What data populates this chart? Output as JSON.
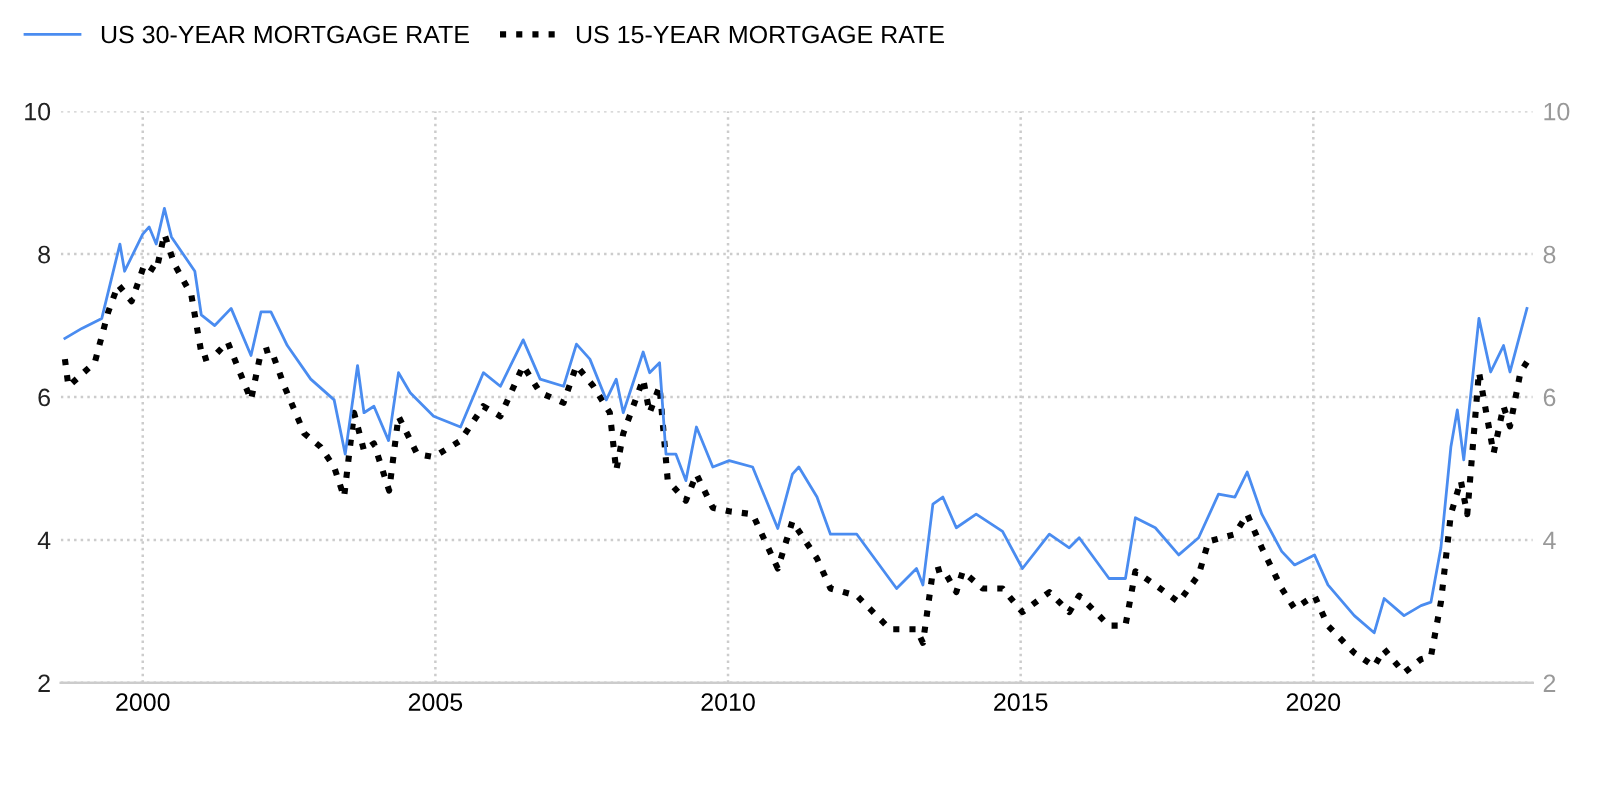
{
  "chart_data": {
    "type": "line",
    "xlim": [
      1998.6,
      2023.75
    ],
    "xticks": [
      2000,
      2005,
      2010,
      2015,
      2020
    ],
    "ylim": [
      2,
      10
    ],
    "yticks": [
      2,
      4,
      6,
      8,
      10
    ],
    "y2lim": [
      2,
      10
    ],
    "y2ticks": [
      2,
      4,
      6,
      8,
      10
    ],
    "grid": true,
    "legend": "top left",
    "series": [
      {
        "name": "US 30-YEAR MORTGAGE RATE",
        "color": "#4a8cf0",
        "line_style": "solid",
        "x": [
          1998.67,
          1998.96,
          1999.3,
          1999.47,
          1999.61,
          1999.69,
          2000.0,
          2000.11,
          2000.23,
          2000.37,
          2000.49,
          2000.89,
          2001.0,
          2001.23,
          2001.51,
          2001.85,
          2002.02,
          2002.19,
          2002.47,
          2002.87,
          2003.27,
          2003.46,
          2003.67,
          2003.78,
          2003.95,
          2004.2,
          2004.37,
          2004.57,
          2004.97,
          2005.43,
          2005.82,
          2006.11,
          2006.5,
          2006.79,
          2007.19,
          2007.41,
          2007.64,
          2007.92,
          2008.09,
          2008.21,
          2008.55,
          2008.66,
          2008.83,
          2008.94,
          2009.11,
          2009.28,
          2009.46,
          2009.74,
          2010.02,
          2010.42,
          2010.85,
          2011.1,
          2011.21,
          2011.52,
          2011.75,
          2012.2,
          2012.88,
          2013.22,
          2013.33,
          2013.5,
          2013.67,
          2013.9,
          2014.24,
          2014.69,
          2015.03,
          2015.49,
          2015.83,
          2016.0,
          2016.51,
          2016.79,
          2016.96,
          2017.3,
          2017.7,
          2018.04,
          2018.38,
          2018.66,
          2018.87,
          2019.12,
          2019.46,
          2019.68,
          2020.02,
          2020.25,
          2020.7,
          2021.04,
          2021.21,
          2021.55,
          2021.84,
          2022.01,
          2022.18,
          2022.35,
          2022.46,
          2022.57,
          2022.83,
          2023.03,
          2023.25,
          2023.36,
          2023.48,
          2023.65
        ],
        "values": [
          6.82,
          6.96,
          7.1,
          7.67,
          8.14,
          7.76,
          8.28,
          8.38,
          8.14,
          8.64,
          8.24,
          7.76,
          7.15,
          7.0,
          7.24,
          6.58,
          7.19,
          7.19,
          6.72,
          6.25,
          5.96,
          5.2,
          6.44,
          5.78,
          5.87,
          5.39,
          6.34,
          6.06,
          5.73,
          5.58,
          6.34,
          6.15,
          6.8,
          6.25,
          6.15,
          6.74,
          6.53,
          5.96,
          6.25,
          5.78,
          6.63,
          6.34,
          6.48,
          5.2,
          5.2,
          4.83,
          5.58,
          5.02,
          5.11,
          5.02,
          4.16,
          4.92,
          5.02,
          4.6,
          4.08,
          4.08,
          3.32,
          3.6,
          3.37,
          4.5,
          4.6,
          4.17,
          4.36,
          4.12,
          3.6,
          4.08,
          3.89,
          4.03,
          3.46,
          3.46,
          4.31,
          4.17,
          3.79,
          4.03,
          4.64,
          4.6,
          4.95,
          4.36,
          3.84,
          3.65,
          3.79,
          3.37,
          2.94,
          2.7,
          3.18,
          2.94,
          3.08,
          3.13,
          3.89,
          5.3,
          5.82,
          5.12,
          7.1,
          6.35,
          6.72,
          6.35,
          6.72,
          7.24
        ]
      },
      {
        "name": "US 15-YEAR MORTGAGE RATE",
        "color": "#000000",
        "line_style": "dotted",
        "x": [
          1998.67,
          1998.73,
          1999.18,
          1999.41,
          1999.58,
          1999.81,
          2000.03,
          2000.23,
          2000.37,
          2000.54,
          2000.83,
          2001.02,
          2001.23,
          2001.45,
          2001.85,
          2002.02,
          2002.19,
          2002.42,
          2002.76,
          2003.04,
          2003.27,
          2003.44,
          2003.61,
          2003.78,
          2003.95,
          2004.21,
          2004.37,
          2004.69,
          2004.97,
          2005.43,
          2005.82,
          2006.11,
          2006.5,
          2006.79,
          2007.19,
          2007.41,
          2007.7,
          2007.98,
          2008.09,
          2008.21,
          2008.55,
          2008.66,
          2008.83,
          2008.97,
          2009.28,
          2009.46,
          2009.74,
          2010.02,
          2010.42,
          2010.85,
          2011.1,
          2011.52,
          2011.75,
          2012.2,
          2012.77,
          2013.22,
          2013.33,
          2013.5,
          2013.67,
          2013.9,
          2014.01,
          2014.35,
          2014.69,
          2015.03,
          2015.49,
          2015.83,
          2016.0,
          2016.51,
          2016.79,
          2016.96,
          2017.3,
          2017.7,
          2018.04,
          2018.21,
          2018.66,
          2018.87,
          2019.12,
          2019.46,
          2019.68,
          2020.02,
          2020.25,
          2020.7,
          2021.04,
          2021.21,
          2021.55,
          2021.84,
          2022.01,
          2022.18,
          2022.35,
          2022.52,
          2022.63,
          2022.83,
          2023.08,
          2023.25,
          2023.36,
          2023.54,
          2023.65
        ],
        "values": [
          6.53,
          6.15,
          6.48,
          7.19,
          7.57,
          7.34,
          7.86,
          7.76,
          8.28,
          7.86,
          7.43,
          6.53,
          6.58,
          6.77,
          5.96,
          6.63,
          6.67,
          6.15,
          5.49,
          5.3,
          5.02,
          4.6,
          5.78,
          5.25,
          5.35,
          4.69,
          5.73,
          5.2,
          5.16,
          5.39,
          5.87,
          5.73,
          6.44,
          6.06,
          5.92,
          6.44,
          6.15,
          5.78,
          4.97,
          5.49,
          6.25,
          5.78,
          6.15,
          4.83,
          4.55,
          4.92,
          4.45,
          4.4,
          4.36,
          3.6,
          4.26,
          3.74,
          3.32,
          3.22,
          2.75,
          2.75,
          2.56,
          3.56,
          3.6,
          3.27,
          3.56,
          3.32,
          3.32,
          2.99,
          3.27,
          2.99,
          3.22,
          2.8,
          2.8,
          3.56,
          3.37,
          3.13,
          3.51,
          3.98,
          4.08,
          4.36,
          3.89,
          3.32,
          3.04,
          3.22,
          2.8,
          2.42,
          2.23,
          2.47,
          2.14,
          2.33,
          2.37,
          3.13,
          4.36,
          4.83,
          4.36,
          6.35,
          5.21,
          5.87,
          5.59,
          6.35,
          6.49
        ]
      }
    ]
  }
}
